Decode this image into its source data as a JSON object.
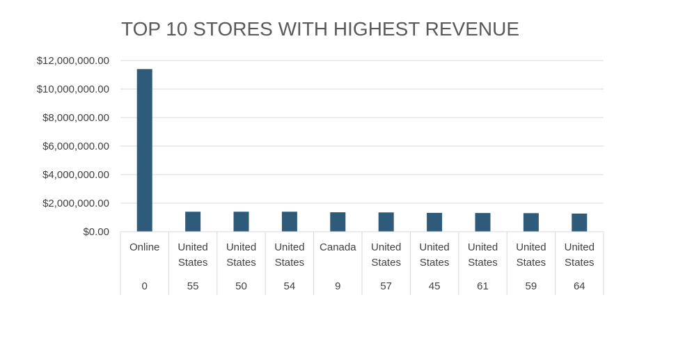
{
  "chart_data": {
    "type": "bar",
    "title": "TOP 10 STORES WITH HIGHEST REVENUE",
    "xlabel": "",
    "ylabel": "",
    "ylim": [
      0,
      12000000
    ],
    "y_ticks": [
      0,
      2000000,
      4000000,
      6000000,
      8000000,
      10000000,
      12000000
    ],
    "y_tick_labels": [
      "$0.00",
      "$2,000,000.00",
      "$4,000,000.00",
      "$6,000,000.00",
      "$8,000,000.00",
      "$10,000,000.00",
      "$12,000,000.00"
    ],
    "grid": true,
    "legend": "none",
    "bar_color": "#2E5B7A",
    "categories": [
      {
        "country": [
          "Online"
        ],
        "store": "0"
      },
      {
        "country": [
          "United",
          "States"
        ],
        "store": "55"
      },
      {
        "country": [
          "United",
          "States"
        ],
        "store": "50"
      },
      {
        "country": [
          "United",
          "States"
        ],
        "store": "54"
      },
      {
        "country": [
          "Canada"
        ],
        "store": "9"
      },
      {
        "country": [
          "United",
          "States"
        ],
        "store": "57"
      },
      {
        "country": [
          "United",
          "States"
        ],
        "store": "45"
      },
      {
        "country": [
          "United",
          "States"
        ],
        "store": "61"
      },
      {
        "country": [
          "United",
          "States"
        ],
        "store": "59"
      },
      {
        "country": [
          "United",
          "States"
        ],
        "store": "64"
      }
    ],
    "values": [
      11400000,
      1400000,
      1400000,
      1400000,
      1360000,
      1350000,
      1320000,
      1310000,
      1300000,
      1270000
    ]
  }
}
